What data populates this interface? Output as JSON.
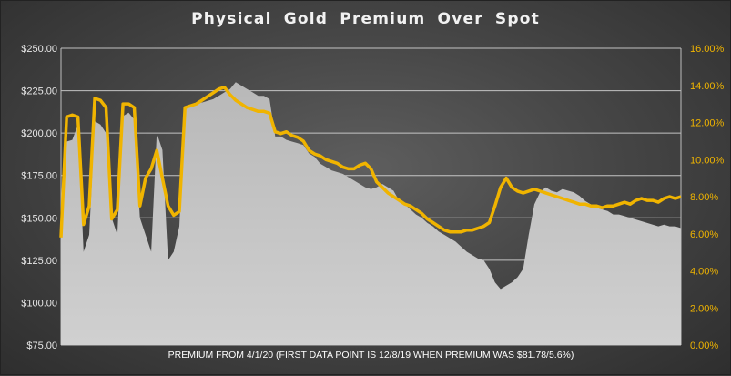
{
  "title": "Physical  Gold  Premium  Over  Spot",
  "chart_data": {
    "type": "area",
    "title": "Physical  Gold  Premium  Over  Spot",
    "xlabel": "PREMIUM FROM 4/1/20 (FIRST DATA POINT IS 12/8/19 WHEN PREMIUM WAS $81.78/5.6%)",
    "ylabel_left": "",
    "ylabel_right": "",
    "ylim_left": [
      75,
      250
    ],
    "ylim_right": [
      0,
      16
    ],
    "left_ticks": [
      "$75.00",
      "$100.00",
      "$125.00",
      "$150.00",
      "$175.00",
      "$200.00",
      "$225.00",
      "$250.00"
    ],
    "right_ticks": [
      "0.00%",
      "2.00%",
      "4.00%",
      "6.00%",
      "8.00%",
      "10.00%",
      "12.00%",
      "14.00%",
      "16.00%"
    ],
    "colors": {
      "premium_dollar": "#c2c2c2",
      "premium_pct": "#f0b400",
      "gridline": "#d9d9d9"
    },
    "series": [
      {
        "axis": "left",
        "values": [
          150,
          195,
          196,
          205,
          130,
          140,
          207,
          205,
          200,
          150,
          140,
          210,
          212,
          208,
          150,
          140,
          130,
          200,
          190,
          125,
          130,
          145,
          215,
          216,
          218,
          218,
          219,
          220,
          222,
          224,
          226,
          230,
          228,
          226,
          224,
          222,
          222,
          220,
          198,
          198,
          196,
          195,
          194,
          193,
          188,
          186,
          182,
          180,
          178,
          177,
          176,
          174,
          172,
          170,
          168,
          167,
          168,
          170,
          168,
          166,
          160,
          158,
          155,
          152,
          150,
          147,
          145,
          142,
          140,
          138,
          136,
          133,
          130,
          128,
          126,
          125,
          120,
          112,
          108,
          110,
          112,
          115,
          120,
          140,
          158,
          165,
          168,
          166,
          165,
          167,
          166,
          165,
          163,
          160,
          158,
          156,
          155,
          154,
          152,
          152,
          151,
          150,
          149,
          148,
          147,
          146,
          145,
          146,
          145,
          145,
          144
        ]
      },
      {
        "axis": "right",
        "values": [
          5.8,
          12.3,
          12.4,
          12.3,
          6.5,
          7.5,
          13.3,
          13.2,
          12.8,
          6.8,
          7.3,
          13.0,
          13.0,
          12.8,
          7.5,
          9.0,
          9.5,
          10.5,
          9.0,
          7.5,
          7.0,
          7.2,
          12.8,
          12.9,
          13.0,
          13.2,
          13.4,
          13.6,
          13.8,
          13.9,
          13.5,
          13.2,
          13.0,
          12.8,
          12.7,
          12.6,
          12.6,
          12.5,
          11.5,
          11.4,
          11.5,
          11.3,
          11.2,
          11.0,
          10.5,
          10.3,
          10.2,
          10.0,
          9.9,
          9.8,
          9.6,
          9.5,
          9.5,
          9.7,
          9.8,
          9.5,
          8.8,
          8.5,
          8.2,
          8.0,
          7.8,
          7.6,
          7.5,
          7.3,
          7.1,
          6.8,
          6.6,
          6.4,
          6.2,
          6.1,
          6.1,
          6.1,
          6.2,
          6.2,
          6.3,
          6.4,
          6.6,
          7.5,
          8.5,
          9.0,
          8.5,
          8.3,
          8.2,
          8.3,
          8.4,
          8.3,
          8.2,
          8.1,
          8.0,
          7.9,
          7.8,
          7.7,
          7.6,
          7.6,
          7.5,
          7.5,
          7.4,
          7.5,
          7.5,
          7.6,
          7.7,
          7.6,
          7.8,
          7.9,
          7.8,
          7.8,
          7.7,
          7.9,
          8.0,
          7.9,
          8.0
        ]
      }
    ],
    "grid": true
  }
}
